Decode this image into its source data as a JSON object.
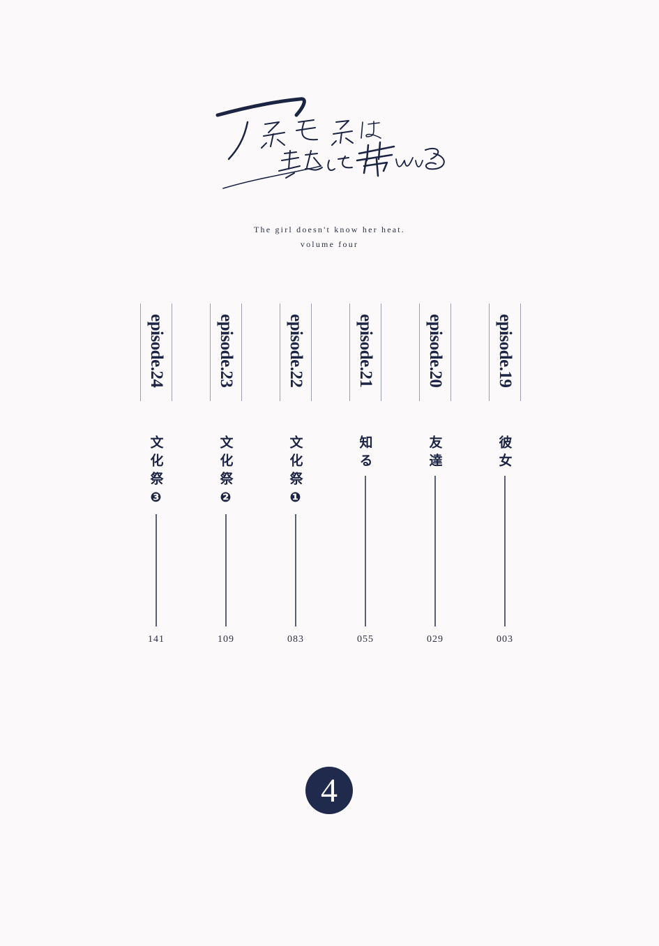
{
  "title_logo": "アネモネは熱を帯びる",
  "subtitle": "The girl doesn't know her heat.",
  "volume_text": "volume four",
  "volume_number": "4",
  "accent_color": "#1f2a4c",
  "episodes": [
    {
      "label": "episode.24",
      "title": "文化祭❸",
      "page": "141"
    },
    {
      "label": "episode.23",
      "title": "文化祭❷",
      "page": "109"
    },
    {
      "label": "episode.22",
      "title": "文化祭❶",
      "page": "083"
    },
    {
      "label": "episode.21",
      "title": "知る",
      "page": "055"
    },
    {
      "label": "episode.20",
      "title": "友達",
      "page": "029"
    },
    {
      "label": "episode.19",
      "title": "彼女",
      "page": "003"
    }
  ]
}
